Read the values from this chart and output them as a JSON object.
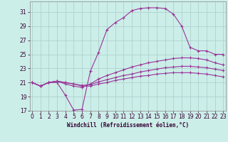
{
  "background_color": "#cceee8",
  "grid_color": "#aacccc",
  "line_color": "#993399",
  "xlabel": "Windchill (Refroidissement éolien,°C)",
  "xlim": [
    0,
    23
  ],
  "ylim": [
    17,
    32
  ],
  "yticks": [
    17,
    19,
    21,
    23,
    25,
    27,
    29,
    31
  ],
  "xticks": [
    0,
    1,
    2,
    3,
    4,
    5,
    6,
    7,
    8,
    9,
    10,
    11,
    12,
    13,
    14,
    15,
    16,
    17,
    18,
    19,
    20,
    21,
    22,
    23
  ],
  "curve1_x": [
    0,
    1,
    2,
    3,
    4,
    5,
    6,
    7,
    8,
    9,
    10,
    11,
    12,
    13,
    14,
    15,
    16,
    17,
    18,
    19,
    20,
    21,
    22,
    23
  ],
  "curve1_y": [
    21.0,
    20.5,
    21.0,
    21.0,
    19.2,
    17.1,
    17.2,
    22.6,
    25.3,
    28.5,
    29.5,
    30.2,
    31.2,
    31.5,
    31.6,
    31.6,
    31.5,
    30.7,
    29.0,
    26.0,
    25.5,
    25.5,
    25.0,
    25.0
  ],
  "curve2_x": [
    0,
    1,
    2,
    3,
    4,
    5,
    6,
    7,
    8,
    9,
    10,
    11,
    12,
    13,
    14,
    15,
    16,
    17,
    18,
    19,
    20,
    21,
    22,
    23
  ],
  "curve2_y": [
    21.0,
    20.5,
    21.0,
    21.2,
    20.8,
    20.5,
    20.3,
    20.8,
    21.5,
    22.0,
    22.4,
    22.8,
    23.2,
    23.5,
    23.8,
    24.0,
    24.2,
    24.4,
    24.5,
    24.5,
    24.4,
    24.2,
    23.8,
    23.5
  ],
  "curve3_x": [
    0,
    1,
    2,
    3,
    4,
    5,
    6,
    7,
    8,
    9,
    10,
    11,
    12,
    13,
    14,
    15,
    16,
    17,
    18,
    19,
    20,
    21,
    22,
    23
  ],
  "curve3_y": [
    21.0,
    20.5,
    21.0,
    21.2,
    21.0,
    20.8,
    20.6,
    20.7,
    21.1,
    21.4,
    21.7,
    22.0,
    22.2,
    22.5,
    22.7,
    22.9,
    23.1,
    23.2,
    23.3,
    23.3,
    23.2,
    23.1,
    22.9,
    22.7
  ],
  "curve4_x": [
    0,
    1,
    2,
    3,
    4,
    5,
    6,
    7,
    8,
    9,
    10,
    11,
    12,
    13,
    14,
    15,
    16,
    17,
    18,
    19,
    20,
    21,
    22,
    23
  ],
  "curve4_y": [
    21.0,
    20.5,
    21.0,
    21.2,
    21.0,
    20.8,
    20.5,
    20.5,
    20.8,
    21.0,
    21.3,
    21.5,
    21.7,
    21.9,
    22.0,
    22.2,
    22.3,
    22.4,
    22.4,
    22.4,
    22.3,
    22.2,
    22.0,
    21.8
  ],
  "tick_fontsize": 5.5,
  "xlabel_fontsize": 5.5
}
